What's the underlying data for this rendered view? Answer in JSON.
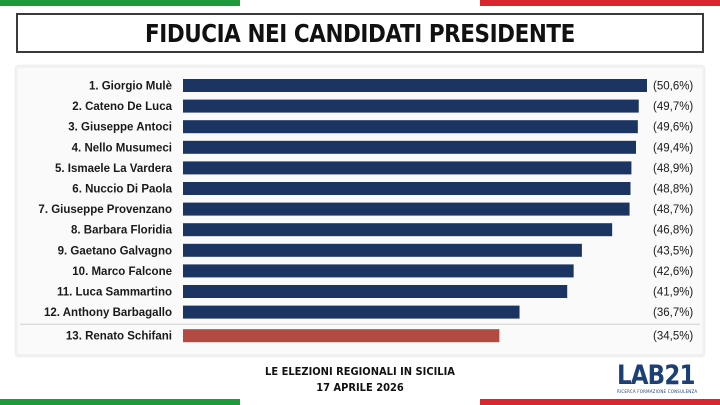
{
  "title": "FIDUCIA NEI CANDIDATI PRESIDENTE",
  "footer": {
    "line1": "LE ELEZIONI REGIONALI IN SICILIA",
    "line2": "17 APRILE 2026"
  },
  "logo": {
    "text": "LAB21",
    "subtitle": "RICERCA FORMAZIONE CONSULENZA"
  },
  "colors": {
    "bar": "#1c3461",
    "highlight": "#b24a42",
    "flag_green": "#1f9a3a",
    "flag_red": "#d8282f"
  },
  "chart_data": {
    "type": "bar",
    "orientation": "horizontal",
    "title": "FIDUCIA NEI CANDIDATI PRESIDENTE",
    "categories": [
      "1. Giorgio Mulè",
      "2. Cateno De Luca",
      "3. Giuseppe Antoci",
      "4. Nello Musumeci",
      "5. Ismaele La Vardera",
      "6. Nuccio Di Paola",
      "7. Giuseppe Provenzano",
      "8. Barbara Floridia",
      "9. Gaetano Galvagno",
      "10. Marco Falcone",
      "11. Luca Sammartino",
      "12. Anthony Barbagallo",
      "13. Renato Schifani"
    ],
    "values": [
      50.6,
      49.7,
      49.6,
      49.4,
      48.9,
      48.8,
      48.7,
      46.8,
      43.5,
      42.6,
      41.9,
      36.7,
      34.5
    ],
    "value_labels": [
      "(50,6%)",
      "(49,7%)",
      "(49,6%)",
      "(49,4%)",
      "(48,9%)",
      "(48,8%)",
      "(48,7%)",
      "(46,8%)",
      "(43,5%)",
      "(42,6%)",
      "(41,9%)",
      "(36,7%)",
      "(34,5%)"
    ],
    "highlight_index": 12,
    "xlim": [
      0,
      50.6
    ],
    "grid": false,
    "legend": "none"
  }
}
